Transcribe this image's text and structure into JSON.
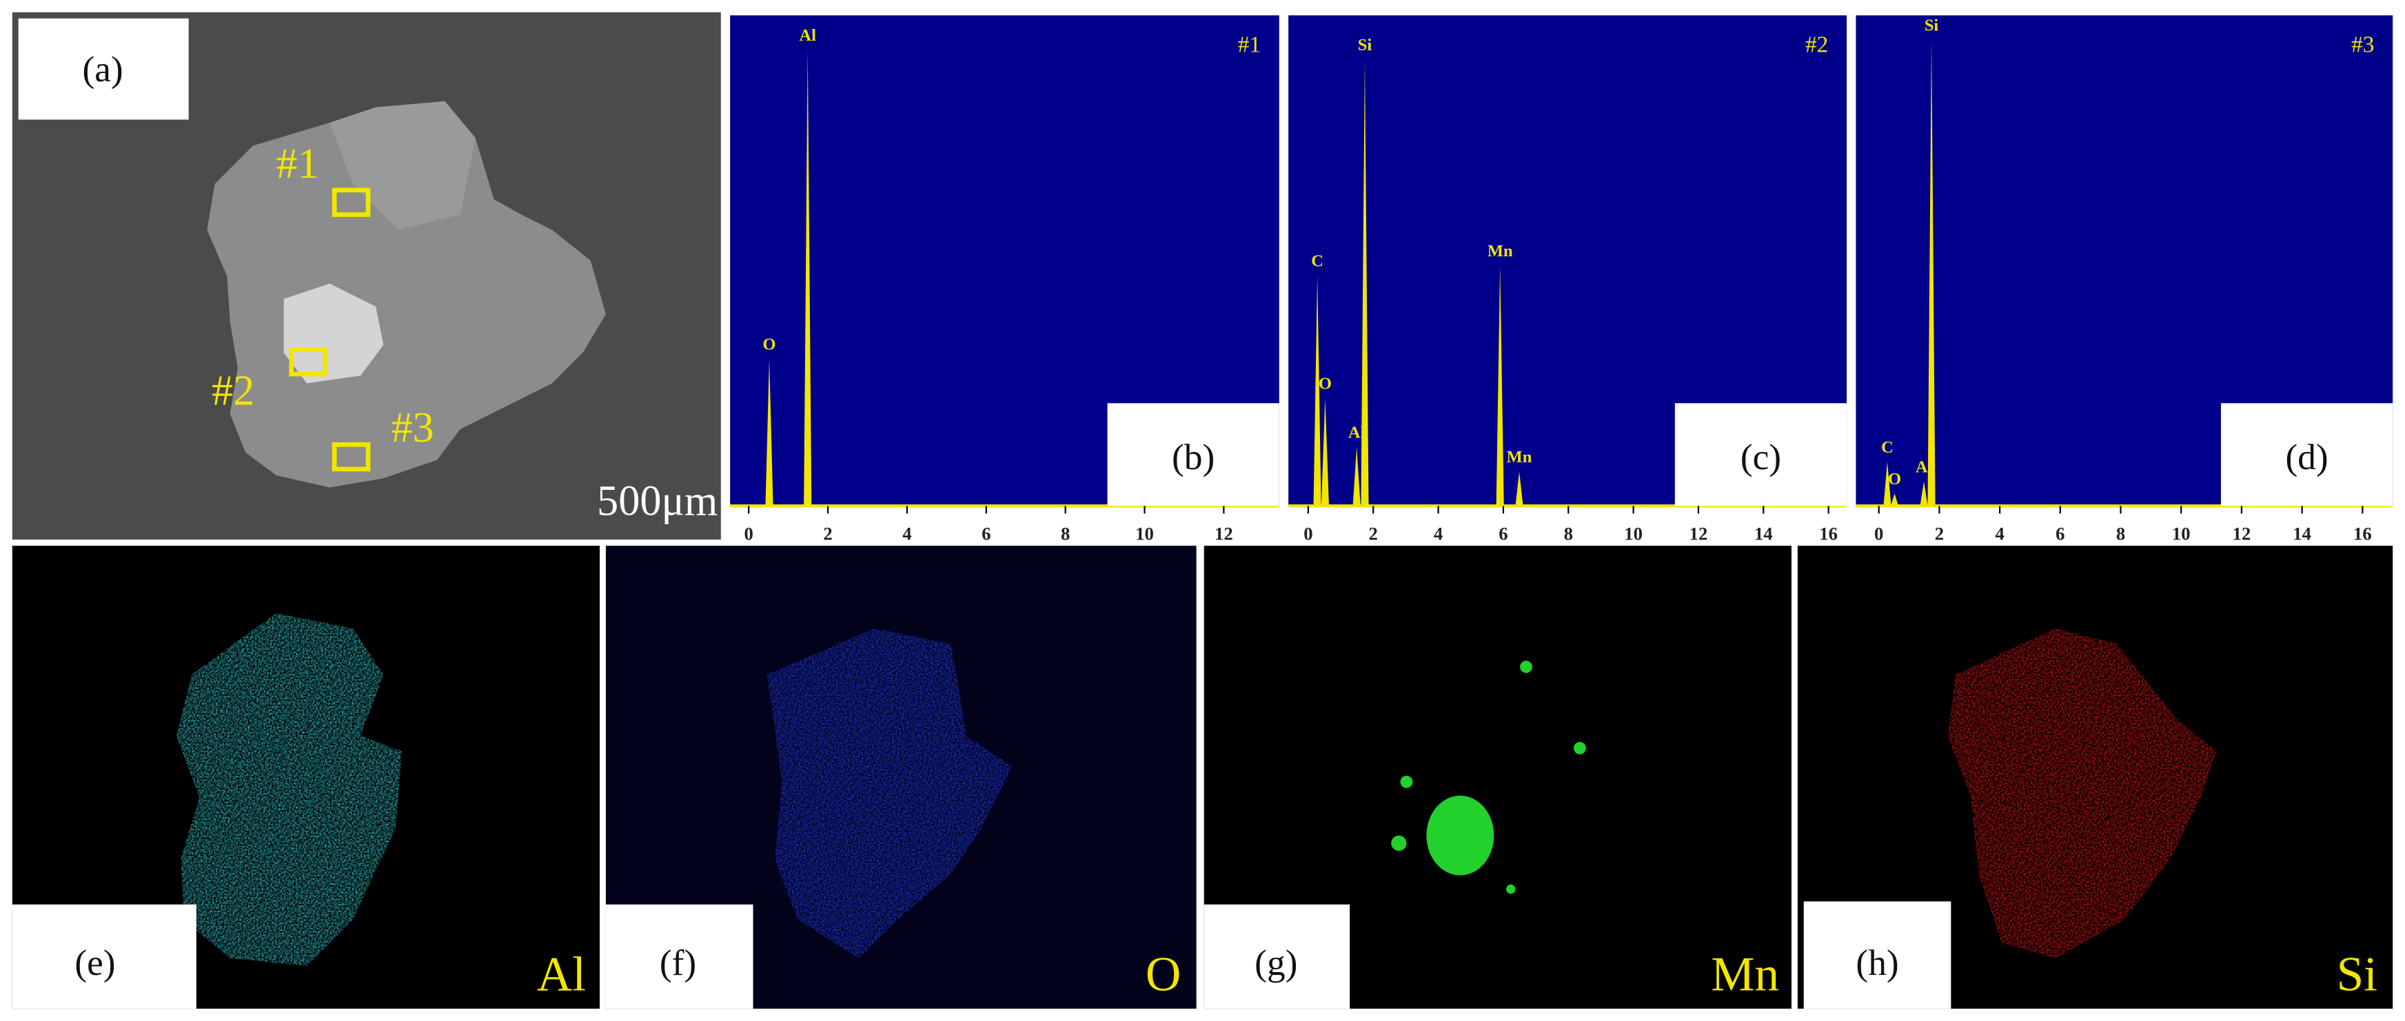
{
  "sem": {
    "panel_label": "(a)",
    "scale_bar": "500μm",
    "regions": [
      "#1",
      "#2",
      "#3"
    ]
  },
  "maps": [
    {
      "panel_label": "(e)",
      "element": "Al"
    },
    {
      "panel_label": "(f)",
      "element": "O"
    },
    {
      "panel_label": "(g)",
      "element": "Mn"
    },
    {
      "panel_label": "(h)",
      "element": "Si"
    }
  ],
  "chart_data": [
    {
      "type": "spectrum",
      "panel_label": "(b)",
      "annotation": "#1",
      "color": "#f2e600",
      "x": [
        0.52,
        1.49
      ],
      "values": [
        30,
        93
      ],
      "peak_labels": [
        "O",
        "Al"
      ],
      "xlim": [
        -0.47,
        13.4
      ],
      "ylim": [
        0,
        100
      ],
      "xticks": [
        0,
        2,
        4,
        6,
        8,
        10,
        12
      ]
    },
    {
      "type": "spectrum",
      "panel_label": "(c)",
      "annotation": "#2",
      "color": "#f2e600",
      "x": [
        0.28,
        0.52,
        1.49,
        1.74,
        5.9,
        6.49
      ],
      "values": [
        47,
        22,
        12,
        91,
        49,
        7
      ],
      "peak_labels": [
        "C",
        "O",
        "Al",
        "Si",
        "Mn",
        "Mn"
      ],
      "xlim": [
        -0.61,
        16.56
      ],
      "ylim": [
        0,
        100
      ],
      "xticks": [
        0,
        2,
        4,
        6,
        8,
        10,
        12,
        14,
        16
      ]
    },
    {
      "type": "spectrum",
      "panel_label": "(d)",
      "annotation": "#3",
      "color": "#f2e600",
      "x": [
        0.28,
        0.52,
        1.49,
        1.74
      ],
      "values": [
        9,
        2.5,
        5,
        95
      ],
      "peak_labels": [
        "C",
        "O",
        "Al",
        "Si"
      ],
      "xlim": [
        -0.76,
        17.0
      ],
      "ylim": [
        0,
        100
      ],
      "xticks": [
        0,
        2,
        4,
        6,
        8,
        10,
        12,
        14,
        16
      ]
    }
  ]
}
